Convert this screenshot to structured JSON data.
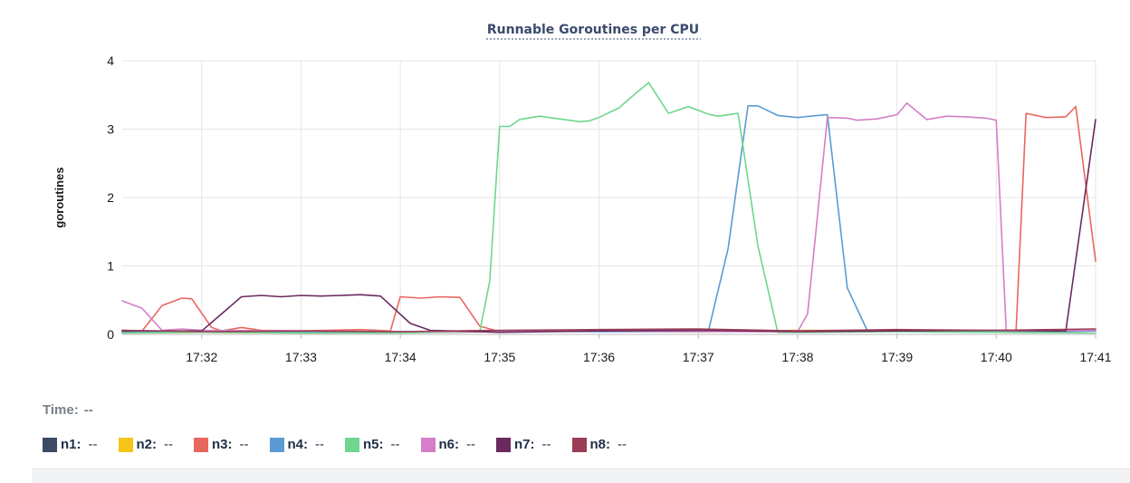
{
  "chart_data": {
    "type": "line",
    "title": "Runnable Goroutines per CPU",
    "xlabel": "",
    "ylabel": "goroutines",
    "ylim": [
      0,
      4
    ],
    "yticks": [
      0,
      1,
      2,
      3,
      4
    ],
    "xlim": [
      "17:31:12",
      "17:41:00"
    ],
    "xticks": [
      "17:32",
      "17:33",
      "17:34",
      "17:35",
      "17:36",
      "17:37",
      "17:38",
      "17:39",
      "17:40",
      "17:41"
    ],
    "grid": true,
    "legend_position": "bottom",
    "series": [
      {
        "name": "n1",
        "color": "#3d4a66",
        "x": [
          "17:31:12",
          "17:32:00",
          "17:33:00",
          "17:34:00",
          "17:35:00",
          "17:36:00",
          "17:37:00",
          "17:38:00",
          "17:39:00",
          "17:40:00",
          "17:41:00"
        ],
        "y": [
          0.04,
          0.03,
          0.04,
          0.03,
          0.04,
          0.05,
          0.05,
          0.04,
          0.05,
          0.04,
          0.05
        ]
      },
      {
        "name": "n2",
        "color": "#f5c518",
        "x": [
          "17:31:12",
          "17:32:00",
          "17:33:00",
          "17:34:00",
          "17:35:00",
          "17:36:00",
          "17:37:00",
          "17:38:00",
          "17:39:00",
          "17:40:00",
          "17:41:00"
        ],
        "y": [
          0.02,
          0.03,
          0.02,
          0.03,
          0.04,
          0.05,
          0.04,
          0.06,
          0.05,
          0.05,
          0.06
        ]
      },
      {
        "name": "n3",
        "color": "#e8675f",
        "x": [
          "17:31:12",
          "17:31:24",
          "17:31:36",
          "17:31:48",
          "17:31:54",
          "17:32:06",
          "17:32:12",
          "17:32:24",
          "17:32:36",
          "17:33:00",
          "17:33:36",
          "17:33:54",
          "17:34:00",
          "17:34:12",
          "17:34:24",
          "17:34:36",
          "17:34:48",
          "17:35:00",
          "17:36:00",
          "17:37:00",
          "17:38:00",
          "17:39:00",
          "17:39:48",
          "17:40:12",
          "17:40:18",
          "17:40:30",
          "17:40:42",
          "17:40:48",
          "17:41:00"
        ],
        "y": [
          0.06,
          0.05,
          0.42,
          0.53,
          0.52,
          0.1,
          0.05,
          0.1,
          0.06,
          0.05,
          0.07,
          0.05,
          0.55,
          0.53,
          0.55,
          0.54,
          0.12,
          0.04,
          0.06,
          0.07,
          0.05,
          0.05,
          0.05,
          0.06,
          3.23,
          3.17,
          3.18,
          3.33,
          1.07
        ]
      },
      {
        "name": "n4",
        "color": "#5b9bd5",
        "x": [
          "17:31:12",
          "17:32:00",
          "17:33:00",
          "17:34:00",
          "17:35:00",
          "17:36:00",
          "17:37:06",
          "17:37:18",
          "17:37:30",
          "17:37:36",
          "17:37:48",
          "17:38:00",
          "17:38:12",
          "17:38:18",
          "17:38:30",
          "17:38:42",
          "17:39:00",
          "17:40:00",
          "17:41:00"
        ],
        "y": [
          0.03,
          0.04,
          0.03,
          0.04,
          0.05,
          0.04,
          0.04,
          1.25,
          3.34,
          3.34,
          3.2,
          3.17,
          3.2,
          3.21,
          0.68,
          0.06,
          0.05,
          0.04,
          0.05
        ]
      },
      {
        "name": "n5",
        "color": "#6ed68f",
        "x": [
          "17:31:12",
          "17:32:00",
          "17:33:00",
          "17:34:00",
          "17:34:48",
          "17:34:54",
          "17:35:00",
          "17:35:06",
          "17:35:12",
          "17:35:24",
          "17:35:36",
          "17:35:48",
          "17:35:54",
          "17:36:00",
          "17:36:12",
          "17:36:24",
          "17:36:30",
          "17:36:42",
          "17:36:54",
          "17:37:06",
          "17:37:12",
          "17:37:24",
          "17:37:36",
          "17:37:48",
          "17:38:00",
          "17:39:00",
          "17:40:00",
          "17:41:00"
        ],
        "y": [
          0.02,
          0.03,
          0.02,
          0.02,
          0.04,
          0.78,
          3.04,
          3.04,
          3.14,
          3.19,
          3.15,
          3.11,
          3.12,
          3.17,
          3.31,
          3.56,
          3.68,
          3.23,
          3.33,
          3.22,
          3.19,
          3.23,
          1.3,
          0.03,
          0.03,
          0.04,
          0.03,
          0.02
        ]
      },
      {
        "name": "n6",
        "color": "#d47fc7",
        "x": [
          "17:31:12",
          "17:31:24",
          "17:31:36",
          "17:31:48",
          "17:32:00",
          "17:33:00",
          "17:34:00",
          "17:35:00",
          "17:36:00",
          "17:37:00",
          "17:38:00",
          "17:38:06",
          "17:38:18",
          "17:38:30",
          "17:38:36",
          "17:38:48",
          "17:39:00",
          "17:39:06",
          "17:39:18",
          "17:39:30",
          "17:39:42",
          "17:39:54",
          "17:40:00",
          "17:40:06",
          "17:40:18",
          "17:41:00"
        ],
        "y": [
          0.49,
          0.38,
          0.06,
          0.08,
          0.06,
          0.05,
          0.04,
          0.04,
          0.05,
          0.04,
          0.04,
          0.3,
          3.17,
          3.16,
          3.13,
          3.15,
          3.21,
          3.38,
          3.14,
          3.19,
          3.18,
          3.16,
          3.13,
          0.05,
          0.05,
          0.06
        ]
      },
      {
        "name": "n7",
        "color": "#6a2a5e",
        "x": [
          "17:31:12",
          "17:32:00",
          "17:32:12",
          "17:32:24",
          "17:32:36",
          "17:32:48",
          "17:33:00",
          "17:33:12",
          "17:33:24",
          "17:33:36",
          "17:33:48",
          "17:34:06",
          "17:34:18",
          "17:35:00",
          "17:36:00",
          "17:37:00",
          "17:38:00",
          "17:39:00",
          "17:40:00",
          "17:40:36",
          "17:40:42",
          "17:41:00"
        ],
        "y": [
          0.05,
          0.05,
          0.3,
          0.55,
          0.57,
          0.55,
          0.57,
          0.56,
          0.57,
          0.58,
          0.56,
          0.16,
          0.06,
          0.03,
          0.05,
          0.06,
          0.04,
          0.05,
          0.06,
          0.05,
          0.05,
          3.14
        ]
      },
      {
        "name": "n8",
        "color": "#9c3d56",
        "x": [
          "17:31:12",
          "17:32:00",
          "17:33:00",
          "17:34:00",
          "17:35:00",
          "17:36:00",
          "17:37:00",
          "17:38:00",
          "17:39:00",
          "17:40:00",
          "17:41:00"
        ],
        "y": [
          0.06,
          0.04,
          0.05,
          0.04,
          0.06,
          0.07,
          0.08,
          0.05,
          0.07,
          0.06,
          0.08
        ]
      }
    ]
  },
  "time_label": "Time:",
  "time_value": "--",
  "legend": [
    {
      "name": "n1:",
      "value": "--",
      "color": "#3d4a66"
    },
    {
      "name": "n2:",
      "value": "--",
      "color": "#f5c518"
    },
    {
      "name": "n3:",
      "value": "--",
      "color": "#e8675f"
    },
    {
      "name": "n4:",
      "value": "--",
      "color": "#5b9bd5"
    },
    {
      "name": "n5:",
      "value": "--",
      "color": "#6ed68f"
    },
    {
      "name": "n6:",
      "value": "--",
      "color": "#d47fc7"
    },
    {
      "name": "n7:",
      "value": "--",
      "color": "#6a2a5e"
    },
    {
      "name": "n8:",
      "value": "--",
      "color": "#9c3d56"
    }
  ]
}
